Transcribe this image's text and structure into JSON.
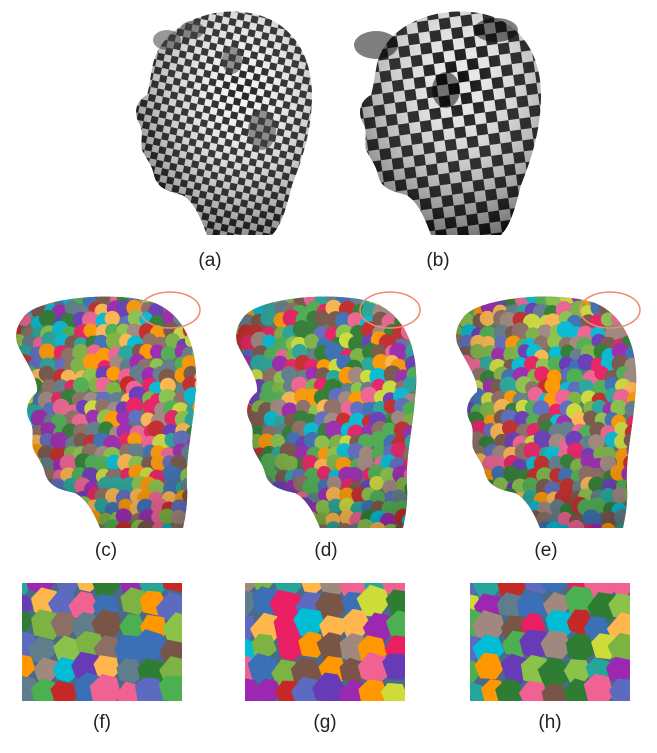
{
  "figure": {
    "panels": [
      {
        "id": "a",
        "label": "(a)",
        "texture": "checkerboard-head"
      },
      {
        "id": "b",
        "label": "(b)",
        "texture": "checkerboard-head-distorted"
      },
      {
        "id": "c",
        "label": "(c)",
        "texture": "colored-patches-head"
      },
      {
        "id": "d",
        "label": "(d)",
        "texture": "colored-patches-head"
      },
      {
        "id": "e",
        "label": "(e)",
        "texture": "colored-patches-head"
      },
      {
        "id": "f",
        "label": "(f)",
        "texture": "patch-closeup"
      },
      {
        "id": "g",
        "label": "(g)",
        "texture": "patch-closeup"
      },
      {
        "id": "h",
        "label": "(h)",
        "texture": "patch-closeup"
      }
    ],
    "highlight_color": "#f08a6e"
  }
}
